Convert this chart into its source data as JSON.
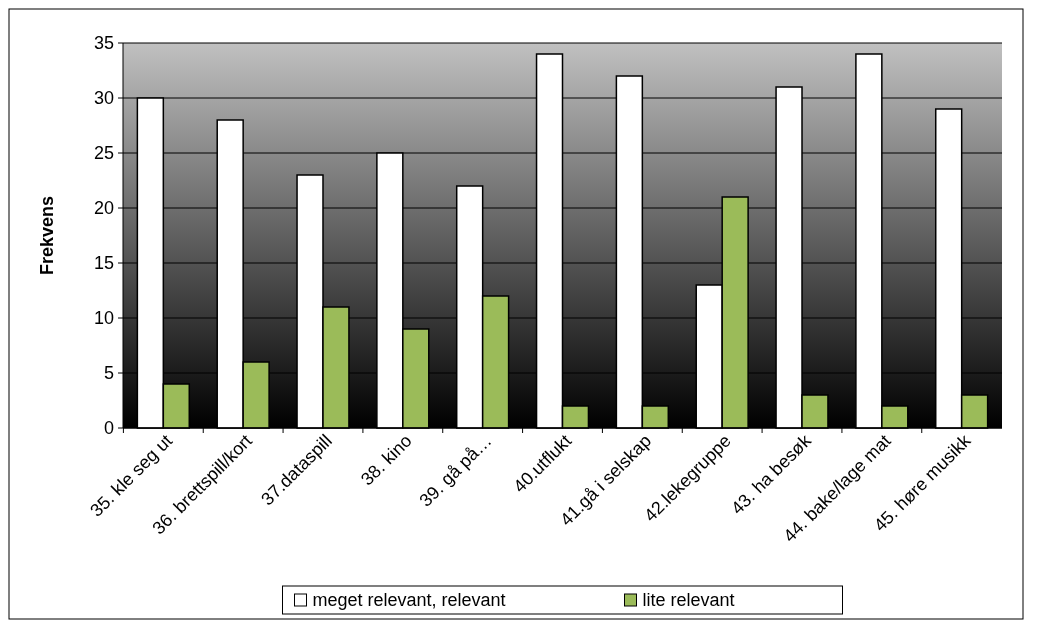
{
  "chart_data": {
    "type": "bar",
    "ylabel": "Frekvens",
    "categories": [
      "35. kle seg ut",
      "36. brettspill/kort",
      "37.dataspill",
      "38. kino",
      "39. gå på…",
      "40.utflukt",
      "41.gå i selskap",
      "42.lekegruppe",
      "43. ha besøk",
      "44. bake/lage mat",
      "45. høre musikk"
    ],
    "series": [
      {
        "name": "meget relevant, relevant",
        "color": "#ffffff",
        "values": [
          30,
          28,
          23,
          25,
          22,
          34,
          32,
          13,
          31,
          34,
          29
        ]
      },
      {
        "name": "lite relevant",
        "color": "#9bbb59",
        "values": [
          4,
          6,
          11,
          9,
          12,
          2,
          2,
          21,
          3,
          2,
          3
        ]
      }
    ],
    "ylim": [
      0,
      35
    ],
    "yticks": [
      0,
      5,
      10,
      15,
      20,
      25,
      30,
      35
    ],
    "grid": "y",
    "legend": "bottom"
  }
}
